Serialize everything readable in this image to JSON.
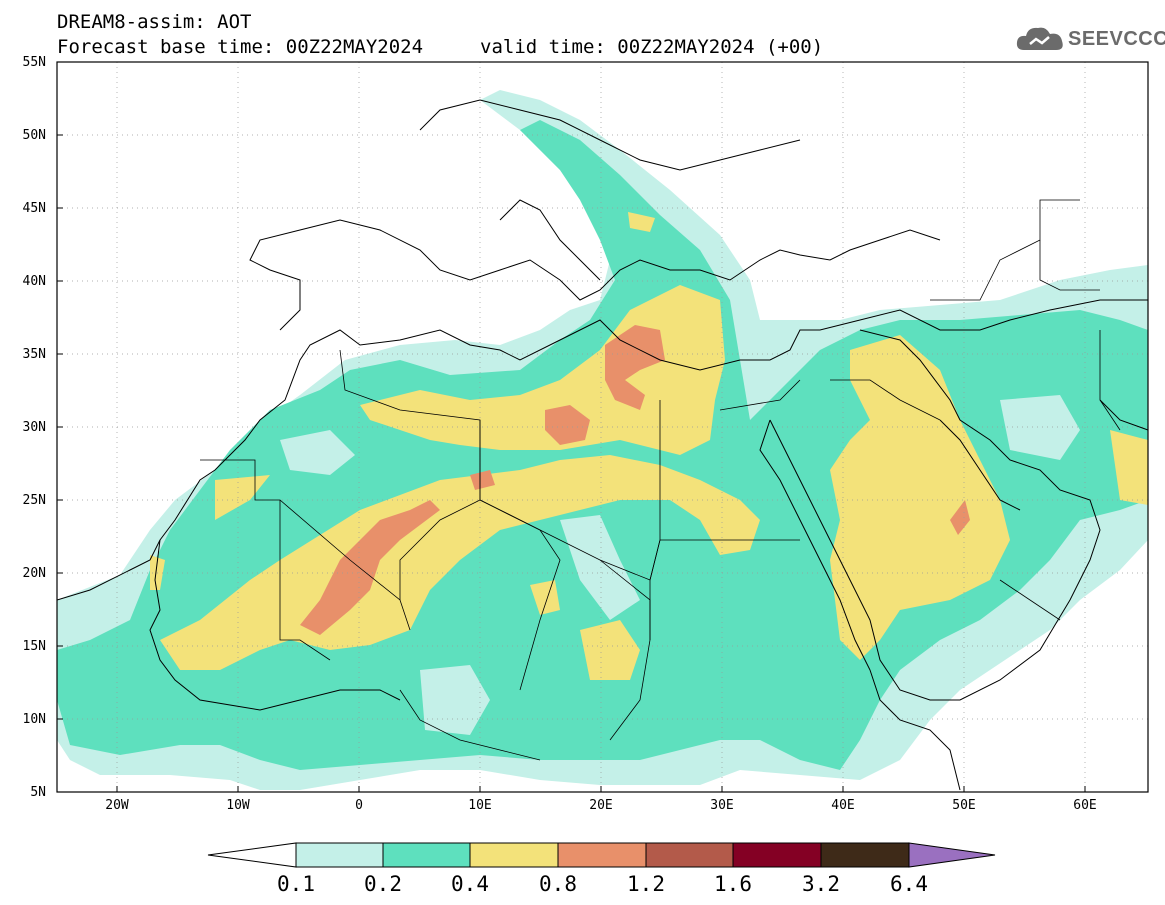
{
  "header": {
    "title": "DREAM8-assim: AOT",
    "base_time": "Forecast base time: 00Z22MAY2024",
    "valid_time": "valid time: 00Z22MAY2024 (+00)"
  },
  "logo": {
    "text": "SEEVCCC",
    "icon": "cloud-icon"
  },
  "map": {
    "lat_labels": [
      "55N",
      "50N",
      "45N",
      "40N",
      "35N",
      "30N",
      "25N",
      "20N",
      "15N",
      "10N",
      "5N"
    ],
    "lon_labels": [
      "20W",
      "10W",
      "0",
      "10E",
      "20E",
      "30E",
      "40E",
      "50E",
      "60E"
    ],
    "lon_range": [
      -25,
      65
    ],
    "lat_range": [
      5,
      55
    ],
    "grid": true
  },
  "colorbar": {
    "labels": [
      "0.1",
      "0.2",
      "0.4",
      "0.8",
      "1.2",
      "1.6",
      "3.2",
      "6.4"
    ],
    "colors": [
      "#c4f0e8",
      "#5ee0be",
      "#f3e27a",
      "#e8906a",
      "#b35a4a",
      "#840024",
      "#3e2a18",
      "#9a70c0"
    ],
    "below_color": "#ffffff"
  }
}
